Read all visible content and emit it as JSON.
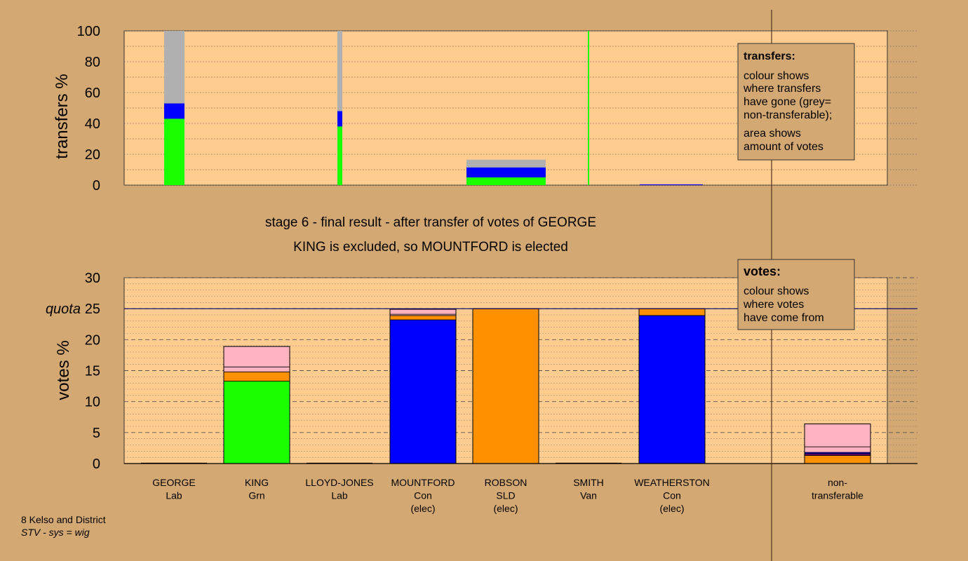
{
  "colors": {
    "background": "#d4a873",
    "plot_bg": "#ffcc8f",
    "green": "#19ff00",
    "blue": "#0000ff",
    "orange": "#ff9000",
    "pink": "#ffb3c0",
    "grey": "#b0b0b0",
    "purple": "#6a006a",
    "legend_bg": "#d4a873"
  },
  "headings": {
    "stage_line": "stage 6 - final result - after transfer of votes of GEORGE",
    "result_line": "KING is excluded, so MOUNTFORD is elected"
  },
  "footer": {
    "line1": "8 Kelso and District",
    "line2": "STV - sys = wig"
  },
  "legend_transfers": {
    "title": "transfers:",
    "lines1": [
      "colour shows",
      "where transfers",
      "have gone (grey=",
      "non-transferable);"
    ],
    "lines2": [
      "area shows",
      "amount of votes"
    ]
  },
  "legend_votes": {
    "title": "votes:",
    "lines": [
      "colour shows",
      "where votes",
      "have come from"
    ]
  },
  "candidates": [
    {
      "name": "GEORGE",
      "party": "Lab",
      "note": ""
    },
    {
      "name": "KING",
      "party": "Grn",
      "note": ""
    },
    {
      "name": "LLOYD-JONES",
      "party": "Lab",
      "note": ""
    },
    {
      "name": "MOUNTFORD",
      "party": "Con",
      "note": "(elec)"
    },
    {
      "name": "ROBSON",
      "party": "SLD",
      "note": "(elec)"
    },
    {
      "name": "SMITH",
      "party": "Van",
      "note": ""
    },
    {
      "name": "WEATHERSTON",
      "party": "Con",
      "note": "(elec)"
    },
    {
      "name": "non-",
      "party": "transferable",
      "note": ""
    }
  ],
  "chart_data": [
    {
      "type": "bar",
      "subtype": "stacked variable-width",
      "ylabel": "transfers %",
      "ylim": [
        0,
        100
      ],
      "yticks": [
        0,
        20,
        40,
        60,
        80,
        100
      ],
      "grid": "dotted",
      "note": "bar width proportional to votes transferred from each candidate",
      "bars": [
        {
          "source": "GEORGE",
          "segments": [
            {
              "color": "green",
              "to": "KING",
              "value": 43
            },
            {
              "color": "blue",
              "to": "Con",
              "value": 10
            },
            {
              "color": "grey",
              "to": "non-transferable",
              "value": 47
            }
          ]
        },
        {
          "source": "LLOYD-JONES",
          "segments": [
            {
              "color": "green",
              "to": "KING",
              "value": 38
            },
            {
              "color": "blue",
              "to": "Con",
              "value": 10
            },
            {
              "color": "grey",
              "to": "non-transferable",
              "value": 52
            }
          ]
        },
        {
          "source": "ROBSON",
          "segments": [
            {
              "color": "green",
              "to": "KING",
              "value": 5
            },
            {
              "color": "blue",
              "to": "Con",
              "value": 6.5
            },
            {
              "color": "grey",
              "to": "non-transferable",
              "value": 5
            }
          ]
        },
        {
          "source": "SMITH",
          "segments": [
            {
              "color": "green",
              "to": "KING",
              "value": 100
            }
          ]
        },
        {
          "source": "WEATHERSTON",
          "segments": [
            {
              "color": "blue",
              "to": "Con",
              "value": 0.5
            }
          ]
        }
      ]
    },
    {
      "type": "bar",
      "subtype": "stacked",
      "ylabel": "votes %",
      "ylim": [
        0,
        30
      ],
      "yticks": [
        0,
        5,
        10,
        15,
        20,
        25,
        30
      ],
      "quota": {
        "label": "quota",
        "value": 25
      },
      "grid": "dashed",
      "categories": [
        "GEORGE",
        "KING",
        "LLOYD-JONES",
        "MOUNTFORD",
        "ROBSON",
        "SMITH",
        "WEATHERSTON",
        "non-transferable"
      ],
      "bars": [
        {
          "name": "GEORGE",
          "segments": []
        },
        {
          "name": "KING",
          "segments": [
            {
              "color": "green",
              "value": 13.3
            },
            {
              "color": "orange",
              "value": 1.5
            },
            {
              "color": "pink",
              "value": 0.8
            },
            {
              "color": "pink",
              "value": 3.3
            }
          ]
        },
        {
          "name": "LLOYD-JONES",
          "segments": []
        },
        {
          "name": "MOUNTFORD",
          "segments": [
            {
              "color": "blue",
              "value": 23.2
            },
            {
              "color": "orange",
              "value": 0.7
            },
            {
              "color": "pink",
              "value": 0.2
            },
            {
              "color": "pink",
              "value": 0.8
            }
          ]
        },
        {
          "name": "ROBSON",
          "segments": [
            {
              "color": "orange",
              "value": 25
            }
          ]
        },
        {
          "name": "SMITH",
          "segments": []
        },
        {
          "name": "WEATHERSTON",
          "segments": [
            {
              "color": "blue",
              "value": 23.9
            },
            {
              "color": "orange",
              "value": 1.1
            }
          ]
        },
        {
          "name": "non-transferable",
          "segments": [
            {
              "color": "orange",
              "value": 1.3
            },
            {
              "color": "purple",
              "value": 0.3
            },
            {
              "color": "blue",
              "value": 0.2
            },
            {
              "color": "pink",
              "value": 0.9
            },
            {
              "color": "pink",
              "value": 3.7
            }
          ]
        }
      ]
    }
  ]
}
